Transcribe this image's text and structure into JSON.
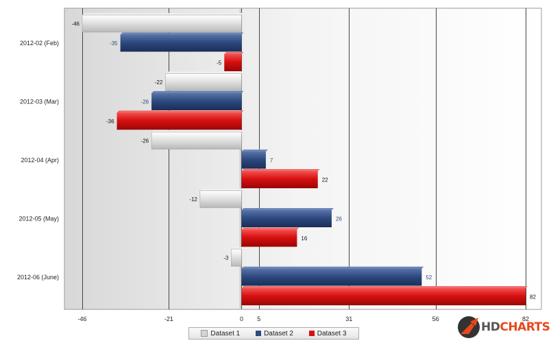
{
  "chart_data": {
    "type": "bar",
    "orientation": "horizontal",
    "categories": [
      "2012-02 (Feb)",
      "2012-03 (Mar)",
      "2012-04 (Apr)",
      "2012-05 (May)",
      "2012-06 (June)"
    ],
    "series": [
      {
        "name": "Dataset 1",
        "color": "#d4d4d4",
        "label_color": "#111111",
        "values": [
          -46,
          -22,
          -26,
          -12,
          -3
        ]
      },
      {
        "name": "Dataset 2",
        "color": "#2e4a80",
        "label_color": "#2e4a80",
        "values": [
          -35,
          -26,
          7,
          26,
          52
        ]
      },
      {
        "name": "Dataset 3",
        "color": "#d81010",
        "label_color": "#111111",
        "values": [
          -5,
          -36,
          22,
          16,
          82
        ]
      }
    ],
    "xlim": [
      -46,
      82
    ],
    "x_ticks": [
      -46,
      -21,
      0,
      5,
      31,
      56,
      82
    ],
    "gridlines": [
      -46,
      -21,
      5,
      31,
      56,
      82
    ],
    "grid": true,
    "legend": "bottom-center",
    "title": "",
    "xlabel": "",
    "ylabel": ""
  },
  "logo": {
    "hd": "HD",
    "charts": "CHARTS"
  }
}
